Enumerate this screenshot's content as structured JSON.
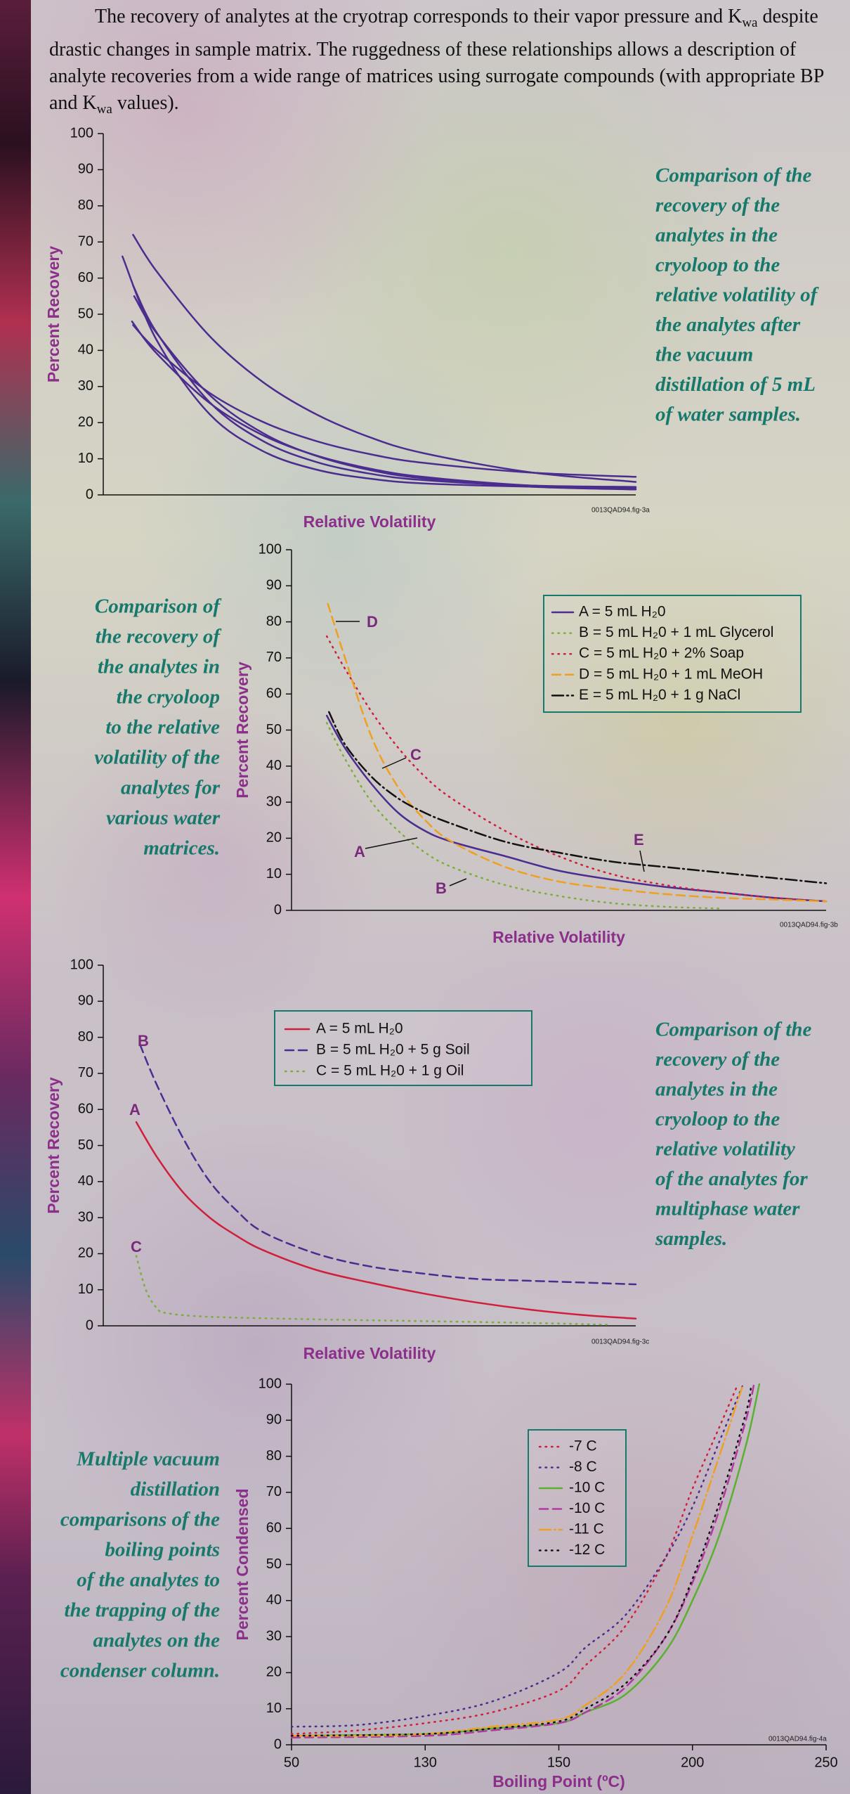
{
  "intro": [
    "The recovery of analytes at the cryotrap corresponds to their vapor pressure and K",
    "wa",
    " despite drastic changes in sample matrix.  The ruggedness of these relationships allows a description of analyte recoveries from a wide range of matrices using surrogate compounds (with appropriate BP and K",
    "wa",
    " values)."
  ],
  "chart_data": [
    {
      "type": "line",
      "caption": [
        "Comparison of the",
        "recovery of the",
        "analytes in the",
        "cryoloop to the",
        "relative volatility of",
        "the analytes after",
        "the vacuum",
        "distillation of 5 mL",
        "of water samples."
      ],
      "xlabel": "Relative Volatility",
      "ylabel": "Percent Recovery",
      "note": "0013QAD94.fig-3a",
      "xlim": [
        0,
        100
      ],
      "ylim": [
        0,
        100
      ],
      "yticks": [
        0,
        10,
        20,
        30,
        40,
        50,
        60,
        70,
        80,
        90,
        100
      ],
      "series": [
        {
          "color": "#4b2d8f",
          "style": "solid",
          "x": [
            5.6,
            10,
            20,
            30,
            40,
            50,
            60,
            80,
            100
          ],
          "values": [
            72,
            61.9,
            43.9,
            31.2,
            22.3,
            16,
            11.6,
            6.3,
            3.6
          ]
        },
        {
          "color": "#4b2d8f",
          "style": "solid",
          "x": [
            3.6,
            10,
            20,
            30,
            40,
            50,
            60,
            80,
            100
          ],
          "values": [
            66,
            42.9,
            22.3,
            12.1,
            7,
            4.5,
            3.2,
            2.3,
            2.1
          ]
        },
        {
          "color": "#4b2d8f",
          "style": "solid",
          "x": [
            5.6,
            10,
            20,
            30,
            40,
            50,
            60,
            80,
            100
          ],
          "values": [
            58,
            45,
            25.6,
            14.9,
            9.1,
            5.9,
            4.1,
            2.6,
            2.2
          ]
        },
        {
          "color": "#4b2d8f",
          "style": "solid",
          "x": [
            5.8,
            10,
            20,
            30,
            40,
            50,
            60,
            80,
            100
          ],
          "values": [
            55,
            44.8,
            27.6,
            17.1,
            10.8,
            6.9,
            4.6,
            2.3,
            1.5
          ]
        },
        {
          "color": "#4b2d8f",
          "style": "solid",
          "x": [
            5.4,
            10,
            20,
            30,
            40,
            50,
            60,
            80,
            100
          ],
          "values": [
            48,
            39.2,
            25.4,
            16.5,
            10.9,
            7.3,
            5,
            2.6,
            1.7
          ]
        },
        {
          "color": "#4b2d8f",
          "style": "solid",
          "x": [
            5.6,
            10,
            20,
            30,
            40,
            50,
            60,
            80,
            100
          ],
          "values": [
            47,
            40.1,
            28.2,
            20.2,
            14.9,
            11.3,
            8.9,
            6.2,
            5
          ]
        }
      ]
    },
    {
      "type": "line",
      "caption": [
        "Comparison of",
        "the recovery of",
        "the analytes in",
        "the cryoloop",
        "to the relative",
        "volatility of the",
        "analytes for",
        "various water",
        "matrices."
      ],
      "xlabel": "Relative Volatility",
      "ylabel": "Percent Recovery",
      "note": "0013QAD94.fig-3b",
      "xlim": [
        0,
        100
      ],
      "ylim": [
        0,
        100
      ],
      "yticks": [
        0,
        10,
        20,
        30,
        40,
        50,
        60,
        70,
        80,
        90,
        100
      ],
      "annotations": [
        "D",
        "C",
        "A",
        "B",
        "E"
      ],
      "series": [
        {
          "name": "A = 5 mL H₂0",
          "color": "#4b2d8f",
          "style": "solid",
          "x": [
            6.6,
            10,
            15,
            20,
            25,
            30,
            40,
            50,
            60,
            70,
            80,
            90,
            100
          ],
          "values": [
            54,
            45,
            35,
            27,
            22,
            19,
            15,
            11,
            8.5,
            6.5,
            5,
            3.5,
            2.5
          ]
        },
        {
          "name": "B = 5 mL H₂0 + 1 mL Glycerol",
          "color": "#7ab03a",
          "style": "dotted",
          "x": [
            6.6,
            10,
            15,
            20,
            25,
            30,
            40,
            50,
            60,
            70,
            80
          ],
          "values": [
            52,
            42,
            30,
            22,
            16,
            12,
            7,
            4,
            2,
            1,
            0.5
          ]
        },
        {
          "name": "C = 5 mL H₂0 + 2% Soap",
          "color": "#d01f3c",
          "style": "dotted",
          "x": [
            6.6,
            10,
            15,
            20,
            25,
            30,
            40,
            50,
            60,
            70,
            80,
            90,
            100
          ],
          "values": [
            76,
            67,
            55,
            45,
            37,
            31,
            22,
            15,
            10,
            7,
            5,
            3.5,
            2.5
          ]
        },
        {
          "name": "D = 5 mL H₂0 + 1 mL MeOH",
          "color": "#f0a020",
          "style": "dashed",
          "x": [
            6.8,
            10,
            15,
            20,
            25,
            30,
            40,
            50,
            60,
            70,
            80,
            90,
            100
          ],
          "values": [
            85,
            70,
            48,
            34,
            25,
            19,
            12,
            8,
            6,
            4.5,
            3.5,
            3,
            2.5
          ]
        },
        {
          "name": "E = 5 mL H₂0 + 1 g NaCl",
          "color": "#111111",
          "style": "dashdot",
          "x": [
            7,
            10,
            15,
            20,
            25,
            30,
            40,
            50,
            60,
            70,
            80,
            90,
            100
          ],
          "values": [
            55,
            46,
            37,
            31,
            27,
            24,
            19,
            16,
            13.5,
            12,
            10.5,
            9,
            7.5
          ]
        }
      ]
    },
    {
      "type": "line",
      "caption": [
        "Comparison of the",
        "recovery of the",
        "analytes in the",
        "cryoloop to the",
        "relative volatility",
        "of the analytes for",
        "multiphase water",
        "samples."
      ],
      "xlabel": "Relative Volatility",
      "ylabel": "Percent Recovery",
      "note": "0013QAD94.fig-3c",
      "xlim": [
        0,
        100
      ],
      "ylim": [
        0,
        100
      ],
      "yticks": [
        0,
        10,
        20,
        30,
        40,
        50,
        60,
        70,
        80,
        90,
        100
      ],
      "annotations": [
        "B",
        "A",
        "C"
      ],
      "series": [
        {
          "name": "A = 5 mL H₂0",
          "color": "#d01f3c",
          "style": "solid",
          "x": [
            6.2,
            10,
            15,
            20,
            25,
            30,
            40,
            50,
            60,
            70,
            80,
            90,
            100
          ],
          "values": [
            56.5,
            47,
            37,
            30,
            25,
            21,
            15.5,
            12,
            9,
            6.5,
            4.5,
            3,
            2
          ]
        },
        {
          "name": "B = 5 mL H₂0 + 5 g Soil",
          "color": "#4b2d8f",
          "style": "dashed",
          "x": [
            6.9,
            10,
            15,
            20,
            25,
            30,
            40,
            50,
            60,
            70,
            80,
            90,
            100
          ],
          "values": [
            78,
            67,
            52,
            40,
            32,
            26,
            20,
            16.5,
            14.5,
            13,
            12.5,
            12,
            11.5
          ]
        },
        {
          "name": "C = 5 mL H₂0 + 1 g Oil",
          "color": "#7ab03a",
          "style": "dotted",
          "x": [
            6.2,
            8,
            10,
            12,
            20,
            40,
            60,
            80,
            95
          ],
          "values": [
            19.4,
            10,
            5,
            3.5,
            2.5,
            1.8,
            1.3,
            0.8,
            0.3
          ]
        }
      ]
    },
    {
      "type": "line",
      "caption": [
        "Multiple vacuum",
        "distillation",
        "comparisons of the",
        "boiling points",
        "of the analytes to",
        "the trapping of the",
        "analytes on the",
        "condenser column."
      ],
      "xlabel": "Boiling Point (ºC)",
      "ylabel": "Percent Condensed",
      "note": "0013QAD94.fig-4a",
      "xscale": "piecewise",
      "xlim": [
        50,
        250
      ],
      "xticks": [
        50,
        130,
        150,
        200,
        250
      ],
      "ylim": [
        0,
        100
      ],
      "yticks": [
        0,
        10,
        20,
        30,
        40,
        50,
        60,
        70,
        80,
        90,
        100
      ],
      "series": [
        {
          "name": "-7  C",
          "color": "#d01f3c",
          "style": "dotted",
          "x": [
            50,
            90,
            130,
            140,
            150,
            160,
            175,
            190,
            200,
            210,
            217
          ],
          "values": [
            3,
            4,
            6,
            9,
            15,
            22,
            33,
            52,
            71,
            88,
            100
          ]
        },
        {
          "name": "-8  C",
          "color": "#4b2d8f",
          "style": "dotted",
          "x": [
            50,
            90,
            130,
            140,
            150,
            160,
            175,
            190,
            200,
            210,
            219
          ],
          "values": [
            5,
            5.5,
            8,
            12,
            20,
            27,
            36,
            52,
            66,
            84,
            100
          ]
        },
        {
          "name": "-10  C",
          "color": "#5ab030",
          "style": "solid",
          "x": [
            50,
            130,
            140,
            150,
            160,
            175,
            190,
            200,
            210,
            220,
            225
          ],
          "values": [
            2.5,
            3,
            4.5,
            6,
            9,
            14,
            26,
            40,
            58,
            83,
            100
          ]
        },
        {
          "name": "-10  C",
          "color": "#b03aa0",
          "style": "dashed",
          "x": [
            50,
            130,
            140,
            150,
            160,
            175,
            190,
            200,
            210,
            220,
            223
          ],
          "values": [
            2,
            2.5,
            4,
            6,
            9,
            16,
            30,
            45,
            65,
            90,
            100
          ]
        },
        {
          "name": "-11  C",
          "color": "#f0a020",
          "style": "dashdot",
          "x": [
            50,
            90,
            130,
            140,
            150,
            160,
            175,
            190,
            200,
            210,
            219
          ],
          "values": [
            2.5,
            2.5,
            3,
            5,
            7,
            11,
            20,
            38,
            58,
            80,
            100
          ]
        },
        {
          "name": "-12  C",
          "color": "#111111",
          "style": "dotted",
          "x": [
            50,
            130,
            140,
            150,
            160,
            175,
            190,
            200,
            210,
            220,
            222
          ],
          "values": [
            2.5,
            3,
            4.5,
            6.5,
            10,
            17,
            30,
            46,
            67,
            92,
            100
          ]
        }
      ]
    }
  ]
}
